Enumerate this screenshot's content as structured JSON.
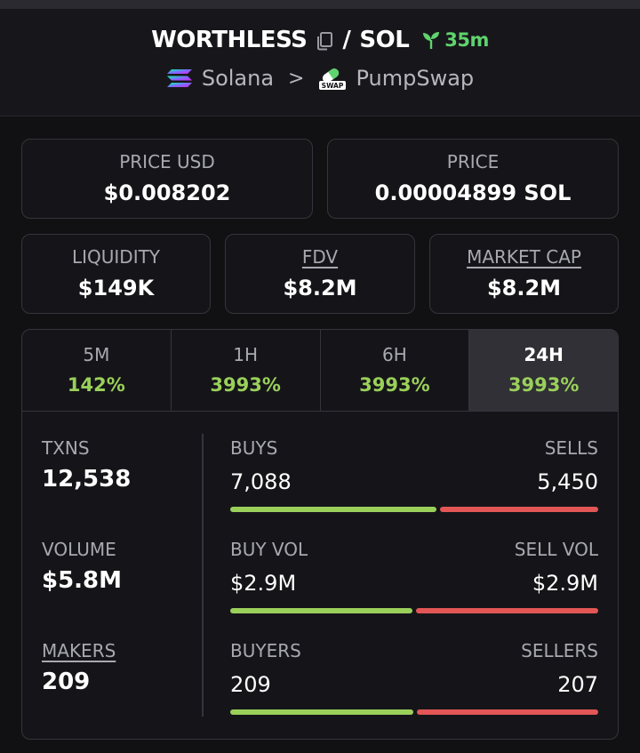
{
  "header": {
    "token": "WORTHLESS",
    "separator": "/",
    "quote": "SOL",
    "age": "35m",
    "chain": "Solana",
    "chevron": ">",
    "dex": "PumpSwap",
    "dex_badge": "SWAP"
  },
  "price": {
    "usd_label": "PRICE USD",
    "usd_value": "$0.008202",
    "native_label": "PRICE",
    "native_value": "0.00004899 SOL"
  },
  "metrics": {
    "liquidity_label": "LIQUIDITY",
    "liquidity_value": "$149K",
    "fdv_label": "FDV",
    "fdv_value": "$8.2M",
    "mcap_label": "MARKET CAP",
    "mcap_value": "$8.2M"
  },
  "tabs": [
    {
      "label": "5M",
      "value": "142%"
    },
    {
      "label": "1H",
      "value": "3993%"
    },
    {
      "label": "6H",
      "value": "3993%"
    },
    {
      "label": "24H",
      "value": "3993%"
    }
  ],
  "stats": {
    "txns_label": "TXNS",
    "txns_value": "12,538",
    "volume_label": "VOLUME",
    "volume_value": "$5.8M",
    "makers_label": "MAKERS",
    "makers_value": "209"
  },
  "rows": [
    {
      "left_label": "BUYS",
      "left_value": "7,088",
      "right_label": "SELLS",
      "right_value": "5,450",
      "buy_fraction": 0.565
    },
    {
      "left_label": "BUY VOL",
      "left_value": "$2.9M",
      "right_label": "SELL VOL",
      "right_value": "$2.9M",
      "buy_fraction": 0.5
    },
    {
      "left_label": "BUYERS",
      "left_value": "209",
      "right_label": "SELLERS",
      "right_value": "207",
      "buy_fraction": 0.503
    }
  ],
  "colors": {
    "accent_green": "#9ad05a",
    "age_green": "#5fd36e",
    "sell_red": "#e25656",
    "background": "#111114"
  }
}
